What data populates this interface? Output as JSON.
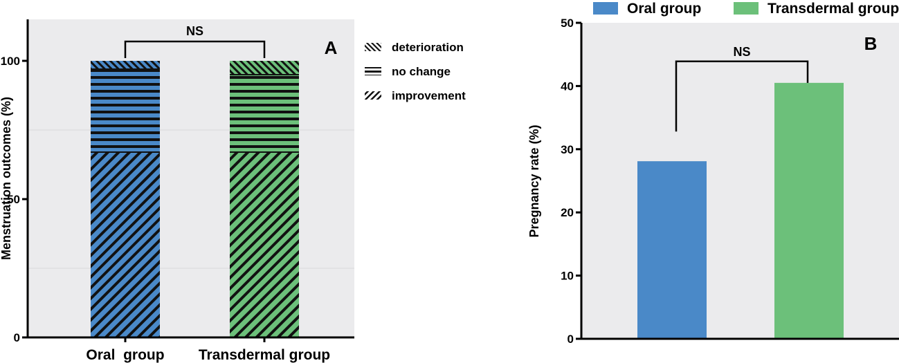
{
  "chart_data": [
    {
      "type": "bar",
      "panel": "A",
      "stacked": true,
      "ylabel": "Menstruation outcomes (%)",
      "xlabel": "",
      "ylim": [
        0,
        115
      ],
      "yticks": [
        0,
        50,
        100
      ],
      "categories": [
        "Oral  group",
        "Transdermal group"
      ],
      "colors": [
        "#4a89c8",
        "#6cc07a"
      ],
      "series": [
        {
          "name": "improvement",
          "values": [
            67,
            67
          ]
        },
        {
          "name": "no change",
          "values": [
            30,
            28
          ]
        },
        {
          "name": "deterioration",
          "values": [
            3,
            5
          ]
        }
      ],
      "legend": [
        "deterioration",
        "no change",
        "improvement"
      ],
      "legend_position": "right",
      "significance": {
        "label": "NS",
        "between": [
          0,
          1
        ],
        "level": 107
      },
      "grid": true
    },
    {
      "type": "bar",
      "panel": "B",
      "ylabel": "Pregnancy rate (%)",
      "xlabel": "",
      "ylim": [
        0,
        50
      ],
      "yticks": [
        0,
        10,
        20,
        30,
        40,
        50
      ],
      "categories": [
        "Oral group",
        "Transdermal group"
      ],
      "colors": [
        "#4a89c8",
        "#6cc07a"
      ],
      "values": [
        28.1,
        40.5
      ],
      "legend": [
        "Oral group",
        "Transdermal group"
      ],
      "legend_position": "top",
      "significance": {
        "label": "NS",
        "between": [
          0,
          1
        ],
        "level": 43.9,
        "left_drop": 32.8,
        "right_drop": 40.5
      },
      "grid": false
    }
  ]
}
